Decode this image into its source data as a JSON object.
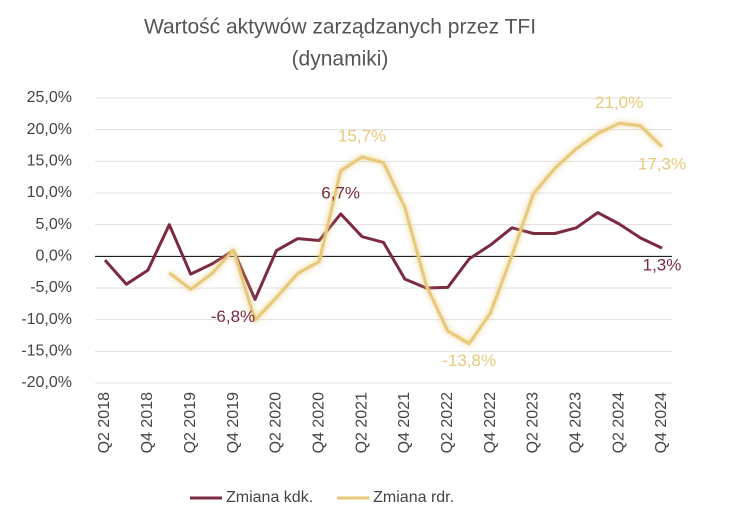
{
  "chart_data": {
    "type": "line",
    "title": "Wartość aktywów zarządzanych przez TFI",
    "subtitle": "(dynamiki)",
    "categories": [
      "Q2 2018",
      null,
      "Q4 2018",
      null,
      "Q2 2019",
      null,
      "Q4 2019",
      null,
      "Q2 2020",
      null,
      "Q4 2020",
      null,
      "Q2 2021",
      null,
      "Q4 2021",
      null,
      "Q2 2022",
      null,
      "Q4 2022",
      null,
      "Q2 2023",
      null,
      "Q4 2023",
      null,
      "Q2 2024",
      null,
      "Q4 2024"
    ],
    "series": [
      {
        "name": "Zmiana kdk.",
        "color": "#7b2a3f",
        "values": [
          -0.6,
          -4.4,
          -2.2,
          5.0,
          -2.8,
          -1.2,
          0.9,
          -6.8,
          0.9,
          2.8,
          2.5,
          6.7,
          3.1,
          2.2,
          -3.6,
          -5.0,
          -4.9,
          -0.4,
          1.8,
          4.5,
          3.6,
          3.6,
          4.5,
          6.9,
          5.1,
          2.9,
          1.3
        ],
        "value_labels": [
          null,
          null,
          null,
          null,
          null,
          null,
          null,
          "-6,8%",
          null,
          null,
          null,
          "6,7%",
          null,
          null,
          null,
          null,
          null,
          null,
          null,
          null,
          null,
          null,
          null,
          null,
          null,
          null,
          "1,3%"
        ]
      },
      {
        "name": "Zmiana rdr.",
        "color": "#e8c97a",
        "values": [
          null,
          null,
          null,
          -2.6,
          -5.2,
          -2.7,
          1.0,
          -10.1,
          -6.5,
          -2.7,
          -0.8,
          13.5,
          15.7,
          14.8,
          7.7,
          -4.6,
          -11.8,
          -13.8,
          -8.9,
          0.2,
          9.9,
          13.9,
          17.0,
          19.4,
          21.0,
          20.6,
          17.3
        ],
        "value_labels": [
          null,
          null,
          null,
          null,
          null,
          null,
          null,
          null,
          null,
          null,
          null,
          null,
          "15,7%",
          null,
          null,
          null,
          null,
          "-13,8%",
          null,
          null,
          null,
          null,
          null,
          null,
          "21,0%",
          null,
          "17,3%"
        ]
      }
    ],
    "ylim": [
      -20,
      25
    ],
    "yticks": [
      {
        "value": -20,
        "label": "-20,0%"
      },
      {
        "value": -15,
        "label": "-15,0%"
      },
      {
        "value": -10,
        "label": "-10,0%"
      },
      {
        "value": -5,
        "label": "-5,0%"
      },
      {
        "value": 0,
        "label": "0,0%"
      },
      {
        "value": 5,
        "label": "5,0%"
      },
      {
        "value": 10,
        "label": "10,0%"
      },
      {
        "value": 15,
        "label": "15,0%"
      },
      {
        "value": 20,
        "label": "20,0%"
      },
      {
        "value": 25,
        "label": "25,0%"
      }
    ],
    "grid": true,
    "legend": "bottom"
  }
}
